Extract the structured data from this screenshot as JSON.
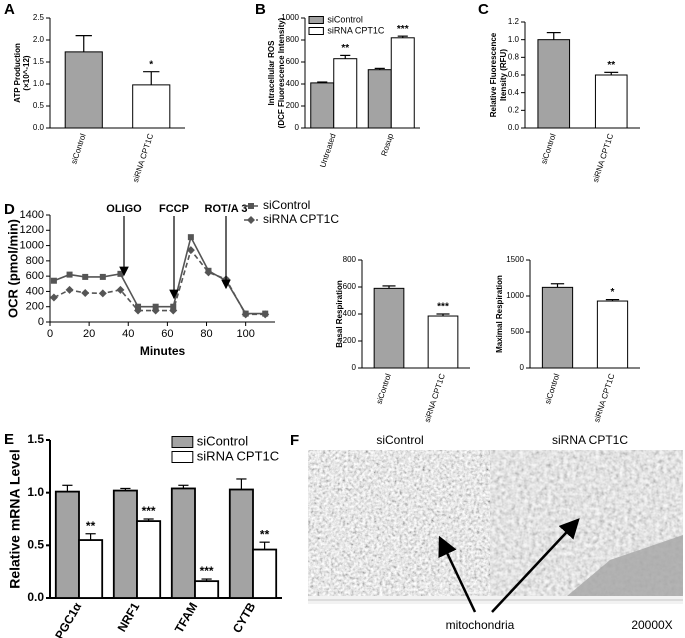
{
  "chart_data": [
    {
      "type": "bar",
      "label": "A",
      "ylabel": [
        "ATP Production",
        "(×10^-12)"
      ],
      "categories": [
        "siControl",
        "siRNA CPT1C"
      ],
      "values": [
        1.73,
        0.98
      ],
      "errors": [
        0.37,
        0.3
      ],
      "colors": [
        "#a3a3a3",
        "#ffffff"
      ],
      "annotations": [
        "*"
      ],
      "ylim": [
        0,
        2.5
      ],
      "yticks": [
        {
          "value": 0,
          "label": "0.0"
        },
        {
          "value": 0.5,
          "label": "0.5"
        },
        {
          "value": 1,
          "label": "1.0"
        },
        {
          "value": 1.5,
          "label": "1.5"
        },
        {
          "value": 2,
          "label": "2.0"
        },
        {
          "value": 2.5,
          "label": "2.5"
        }
      ]
    },
    {
      "type": "bar",
      "label": "B",
      "ylabel": [
        "Intracellular ROS",
        "(DCF Fluorescence Intensity)"
      ],
      "categories": [
        "Untreated",
        "Rosup"
      ],
      "series": [
        {
          "name": "siControl",
          "color": "#a3a3a3",
          "values": [
            410,
            530
          ],
          "errors": [
            8,
            12
          ]
        },
        {
          "name": "siRNA CPT1C",
          "color": "#ffffff",
          "values": [
            630,
            820
          ],
          "errors": [
            30,
            15
          ]
        }
      ],
      "annotations": [
        "**",
        "***"
      ],
      "ylim": [
        0,
        1000
      ],
      "yticks": [
        0,
        200,
        400,
        600,
        800,
        1000
      ]
    },
    {
      "type": "bar",
      "label": "C",
      "ylabel": [
        "Relative Fluorescence",
        "Itensity (RFU)"
      ],
      "categories": [
        "siControl",
        "siRNA CPT1C"
      ],
      "values": [
        1.0,
        0.6
      ],
      "errors": [
        0.08,
        0.03
      ],
      "colors": [
        "#a3a3a3",
        "#ffffff"
      ],
      "annotations": [
        "**"
      ],
      "ylim": [
        0,
        1.2
      ],
      "yticks": [
        {
          "value": 0,
          "label": "0.0"
        },
        {
          "value": 0.2,
          "label": "0.2"
        },
        {
          "value": 0.4,
          "label": "0.4"
        },
        {
          "value": 0.6,
          "label": "0.6"
        },
        {
          "value": 0.8,
          "label": "0.8"
        },
        {
          "value": 1,
          "label": "1.0"
        },
        {
          "value": 1.2,
          "label": "1.2"
        }
      ]
    },
    {
      "type": "line",
      "label": "D",
      "ylabel": [
        "OCR (pmol/min)"
      ],
      "xlabel": "Minutes",
      "x": [
        2,
        10,
        18,
        27,
        36,
        45,
        54,
        63,
        72,
        81,
        90,
        100,
        110
      ],
      "series": [
        {
          "name": "siControl",
          "color": "#555555",
          "marker": "square",
          "line_style": "solid",
          "values": [
            540,
            620,
            590,
            590,
            630,
            200,
            200,
            200,
            1110,
            670,
            540,
            110,
            110
          ]
        },
        {
          "name": "siRNA CPT1C",
          "color": "#555555",
          "marker": "diamond",
          "line_style": "dashed",
          "values": [
            320,
            420,
            380,
            375,
            420,
            150,
            150,
            150,
            940,
            650,
            560,
            100,
            100
          ]
        }
      ],
      "annotations": [
        "OLIGO",
        "FCCP",
        "ROT/A 3"
      ],
      "xlim": [
        0,
        115
      ],
      "xticks": [
        0,
        20,
        40,
        60,
        80,
        100
      ],
      "ylim": [
        0,
        1400
      ],
      "yticks": [
        0,
        200,
        400,
        600,
        800,
        1000,
        1200,
        1400
      ]
    },
    {
      "type": "bar",
      "ylabel": [
        "Basal Respiration"
      ],
      "categories": [
        "siControl",
        "siRNA CPT1C"
      ],
      "values": [
        590,
        385
      ],
      "errors": [
        18,
        15
      ],
      "colors": [
        "#a3a3a3",
        "#ffffff"
      ],
      "annotations": [
        "***"
      ],
      "ylim": [
        0,
        800
      ],
      "yticks": [
        0,
        200,
        400,
        600,
        800
      ]
    },
    {
      "type": "bar",
      "ylabel": [
        "Maximal Respiration"
      ],
      "categories": [
        "siControl",
        "siRNA CPT1C"
      ],
      "values": [
        1120,
        930
      ],
      "errors": [
        50,
        20
      ],
      "colors": [
        "#a3a3a3",
        "#ffffff"
      ],
      "annotations": [
        "*"
      ],
      "ylim": [
        0,
        1500
      ],
      "yticks": [
        0,
        500,
        1000,
        1500
      ]
    },
    {
      "type": "bar",
      "label": "E",
      "ylabel": [
        "Relative mRNA Level"
      ],
      "categories": [
        "PGC1α",
        "NRF1",
        "TFAM",
        "CYTB"
      ],
      "series": [
        {
          "name": "siControl",
          "color": "#a3a3a3",
          "values": [
            1.01,
            1.02,
            1.04,
            1.03
          ],
          "errors": [
            0.06,
            0.02,
            0.03,
            0.1
          ]
        },
        {
          "name": "siRNA CPT1C",
          "color": "#ffffff",
          "values": [
            0.55,
            0.73,
            0.16,
            0.46
          ],
          "errors": [
            0.06,
            0.02,
            0.02,
            0.07
          ]
        }
      ],
      "annotations": [
        "**",
        "***",
        "***",
        "**"
      ],
      "ylim": [
        0,
        1.5
      ],
      "yticks": [
        {
          "value": 0,
          "label": "0.0"
        },
        {
          "value": 0.5,
          "label": "0.5"
        },
        {
          "value": 1,
          "label": "1.0"
        },
        {
          "value": 1.5,
          "label": "1.5"
        }
      ]
    }
  ],
  "micrograph": {
    "label": "F",
    "panels": [
      "siControl",
      "siRNA CPT1C"
    ],
    "arrow_label": "mitochondria",
    "magnification": "20000X"
  }
}
